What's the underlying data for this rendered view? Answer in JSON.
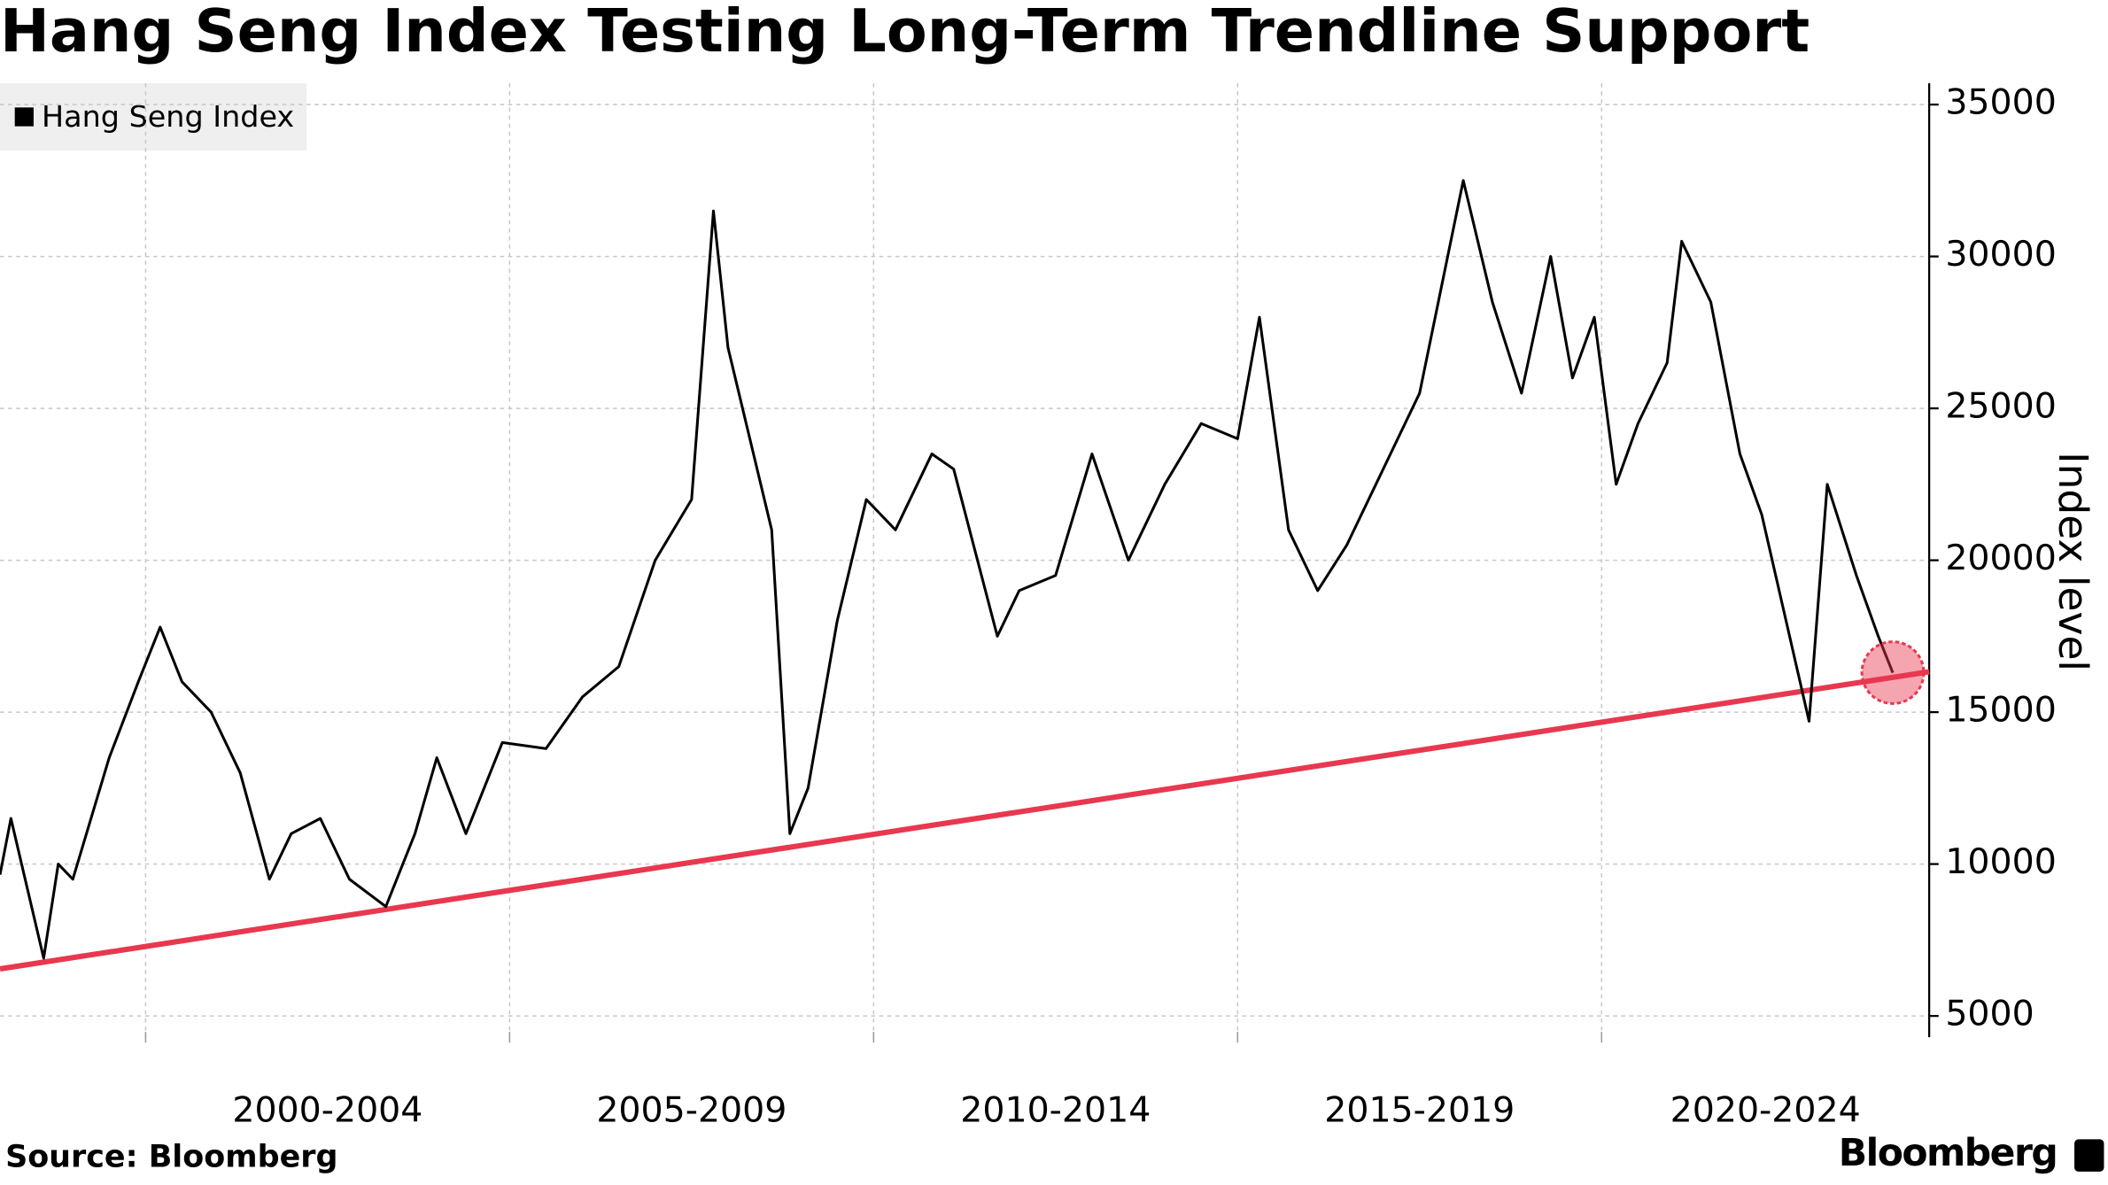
{
  "chart_data": {
    "type": "line",
    "title": "Hang Seng Index Testing Long-Term Trendline Support",
    "y_axis_label": "Index level",
    "source": "Source: Bloomberg",
    "brand": "Bloomberg",
    "legend": "top-left",
    "grid": true,
    "xlim": [
      1998.0,
      2024.5
    ],
    "ylim": [
      4300,
      35700
    ],
    "yticks": [
      5000,
      10000,
      15000,
      20000,
      25000,
      30000,
      35000
    ],
    "xticks": [
      {
        "value": 2002.5,
        "label": "2000-2004"
      },
      {
        "value": 2007.5,
        "label": "2005-2009"
      },
      {
        "value": 2012.5,
        "label": "2010-2014"
      },
      {
        "value": 2017.5,
        "label": "2015-2019"
      },
      {
        "value": 2022.25,
        "label": "2020-2024"
      }
    ],
    "xgrid": [
      2000,
      2005,
      2010,
      2015,
      2020
    ],
    "x": [
      1998.0,
      1998.15,
      1998.6,
      1998.8,
      1999.0,
      1999.5,
      1999.9,
      2000.2,
      2000.5,
      2000.9,
      2001.3,
      2001.7,
      2002.0,
      2002.4,
      2002.8,
      2003.3,
      2003.7,
      2004.0,
      2004.4,
      2004.9,
      2005.5,
      2006.0,
      2006.5,
      2007.0,
      2007.5,
      2007.8,
      2008.0,
      2008.3,
      2008.6,
      2008.85,
      2009.1,
      2009.5,
      2009.9,
      2010.3,
      2010.8,
      2011.1,
      2011.7,
      2012.0,
      2012.5,
      2013.0,
      2013.5,
      2014.0,
      2014.5,
      2015.0,
      2015.3,
      2015.7,
      2016.1,
      2016.5,
      2016.9,
      2017.5,
      2018.1,
      2018.5,
      2018.9,
      2019.3,
      2019.6,
      2019.9,
      2020.2,
      2020.5,
      2020.9,
      2021.1,
      2021.5,
      2021.9,
      2022.2,
      2022.85,
      2023.1,
      2023.5,
      2023.8,
      2024.0
    ],
    "series": [
      {
        "name": "Hang Seng Index",
        "color": "#000000",
        "values": [
          9650,
          11500,
          6900,
          10000,
          9500,
          13500,
          16000,
          17800,
          16000,
          15000,
          13000,
          9500,
          11000,
          11500,
          9500,
          8600,
          11000,
          13500,
          11000,
          14000,
          13800,
          15500,
          16500,
          20000,
          22000,
          31500,
          27000,
          24000,
          21000,
          11000,
          12500,
          18000,
          22000,
          21000,
          23500,
          23000,
          17500,
          19000,
          19500,
          23500,
          20000,
          22500,
          24500,
          24000,
          28000,
          21000,
          19000,
          20500,
          22500,
          25500,
          32500,
          28500,
          25500,
          30000,
          26000,
          28000,
          22500,
          24500,
          26500,
          30500,
          28500,
          23500,
          21500,
          14700,
          22500,
          19500,
          17500,
          16300
        ]
      }
    ],
    "trendline": {
      "x": [
        1998.0,
        2024.5
      ],
      "values": [
        6550,
        16330
      ],
      "color": "#e8384f"
    }
  }
}
